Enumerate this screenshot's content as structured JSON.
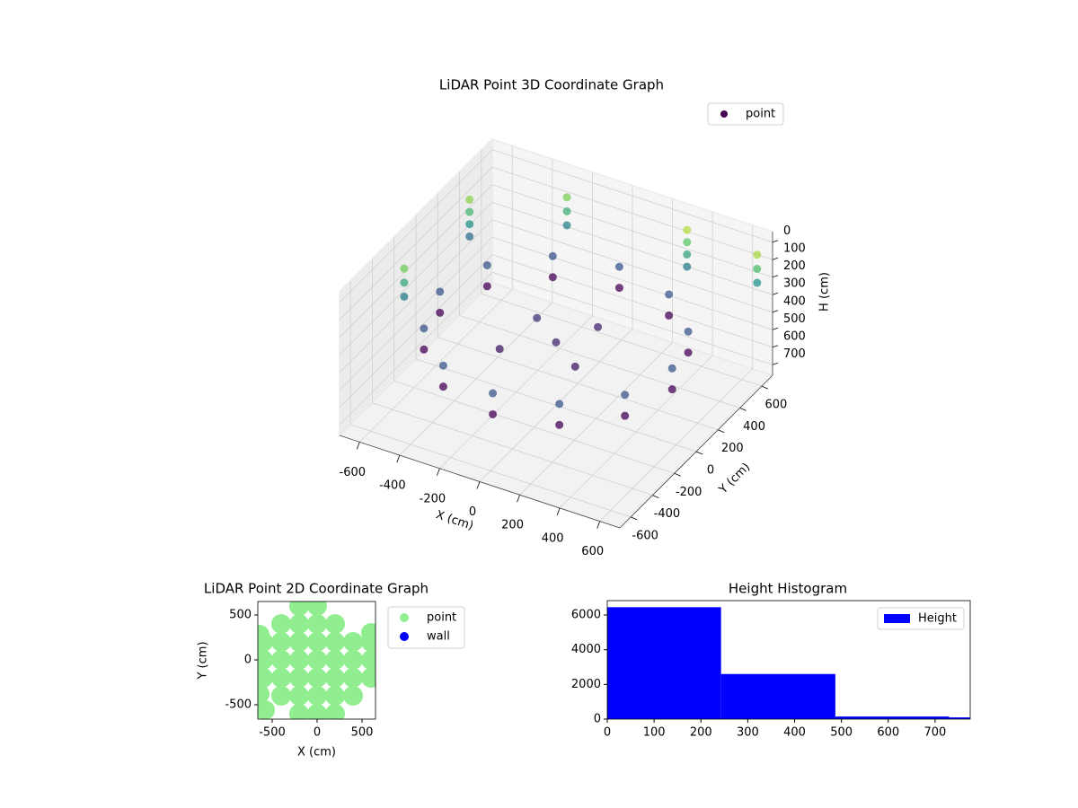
{
  "chart_data": [
    {
      "type": "scatter3d",
      "title": "LiDAR Point 3D Coordinate Graph",
      "xlabel": "X (cm)",
      "ylabel": "Y (cm)",
      "zlabel": "H (cm)",
      "xlim": [
        -700,
        700
      ],
      "ylim": [
        -700,
        700
      ],
      "zlim": [
        760,
        -60
      ],
      "xticks": [
        -600,
        -400,
        -200,
        0,
        200,
        400,
        600
      ],
      "yticks": [
        -600,
        -400,
        -200,
        0,
        200,
        400,
        600
      ],
      "zticks": [
        0,
        100,
        200,
        300,
        400,
        500,
        600,
        700
      ],
      "colormap": "viridis",
      "clim": [
        450,
        0
      ],
      "legend": "upper right",
      "grid": true,
      "series": [
        {
          "name": "point",
          "color": "#440154",
          "x": [
            580,
            502,
            290,
            0,
            -290,
            -502,
            -580,
            -502,
            -290,
            0,
            290,
            502,
            580,
            502,
            290,
            0,
            -290,
            -502,
            -580,
            -502,
            -290,
            0,
            290,
            502,
            0,
            -150,
            150,
            100,
            -200,
            -650,
            -650,
            -650,
            -650,
            -650,
            -650,
            -650,
            300,
            300,
            300,
            300,
            650,
            650,
            650,
            -300,
            -300,
            -300
          ],
          "y": [
            0,
            290,
            502,
            580,
            502,
            290,
            0,
            -290,
            -502,
            -580,
            -502,
            -290,
            0,
            290,
            502,
            580,
            502,
            290,
            0,
            -290,
            -502,
            -580,
            -502,
            -290,
            0,
            100,
            -100,
            200,
            -150,
            400,
            400,
            400,
            400,
            -200,
            -200,
            -200,
            650,
            650,
            650,
            650,
            650,
            650,
            650,
            650,
            650,
            650
          ],
          "z": [
            450,
            450,
            450,
            450,
            450,
            450,
            450,
            450,
            450,
            450,
            450,
            450,
            330,
            330,
            330,
            330,
            330,
            330,
            330,
            330,
            330,
            330,
            330,
            330,
            400,
            380,
            420,
            400,
            420,
            80,
            150,
            220,
            290,
            100,
            180,
            260,
            50,
            120,
            190,
            260,
            60,
            140,
            220,
            90,
            170,
            250
          ]
        }
      ]
    },
    {
      "type": "scatter",
      "title": "LiDAR Point 2D Coordinate Graph",
      "xlabel": "X (cm)",
      "ylabel": "Y (cm)",
      "xlim": [
        -660,
        650
      ],
      "ylim": [
        -660,
        650
      ],
      "xticks": [
        -500,
        0,
        500
      ],
      "yticks": [
        -500,
        0,
        500
      ],
      "legend": "outside upper right",
      "series": [
        {
          "name": "point",
          "color": "lightgreen",
          "x": [
            -600,
            -600,
            -600,
            -400,
            -400,
            -400,
            -400,
            -400,
            -200,
            -200,
            -200,
            -200,
            -200,
            -200,
            -200,
            0,
            0,
            0,
            0,
            0,
            0,
            0,
            200,
            200,
            200,
            200,
            200,
            200,
            400,
            400,
            400,
            400,
            600,
            600,
            600,
            -640,
            -640,
            -580,
            600
          ],
          "y": [
            -200,
            0,
            200,
            -400,
            -200,
            0,
            200,
            400,
            -600,
            -400,
            -200,
            0,
            200,
            400,
            600,
            -600,
            -400,
            -200,
            0,
            200,
            400,
            600,
            -600,
            -400,
            -200,
            0,
            200,
            400,
            -400,
            -200,
            0,
            200,
            -200,
            0,
            200,
            280,
            -380,
            -560,
            300
          ]
        },
        {
          "name": "wall",
          "color": "blue",
          "x": [],
          "y": []
        }
      ]
    },
    {
      "type": "histogram",
      "title": "Height Histogram",
      "bins": [
        0,
        243,
        487,
        730,
        974
      ],
      "xlim": [
        0,
        775
      ],
      "ylim": [
        0,
        6830
      ],
      "xticks": [
        0,
        100,
        200,
        300,
        400,
        500,
        600,
        700
      ],
      "yticks": [
        0,
        2000,
        4000,
        6000
      ],
      "legend": "upper right",
      "series": [
        {
          "name": "Height",
          "color": "blue",
          "values": [
            6450,
            2600,
            150,
            100
          ]
        }
      ]
    }
  ]
}
